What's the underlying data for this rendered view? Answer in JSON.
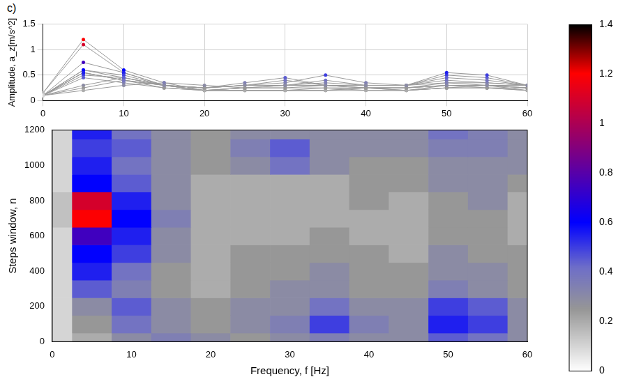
{
  "chart_data": {
    "type": "surface",
    "panel": "c)",
    "x_label": "Frequency, f [Hz]",
    "y_label": "Steps window, n",
    "z_label": "Amplitude, a_z[m/s^2]",
    "x": [
      0,
      5,
      10,
      15,
      20,
      25,
      30,
      35,
      40,
      45,
      50,
      55,
      60
    ],
    "y": [
      0,
      100,
      200,
      300,
      400,
      500,
      600,
      700,
      800,
      900,
      1000,
      1100,
      1200
    ],
    "z": [
      [
        0.1,
        0.2,
        0.3,
        0.35,
        0.3,
        0.25,
        0.3,
        0.35,
        0.3,
        0.3,
        0.45,
        0.4,
        0.3
      ],
      [
        0.1,
        0.25,
        0.4,
        0.3,
        0.25,
        0.3,
        0.35,
        0.5,
        0.35,
        0.3,
        0.55,
        0.5,
        0.3
      ],
      [
        0.1,
        0.3,
        0.45,
        0.3,
        0.25,
        0.3,
        0.3,
        0.4,
        0.3,
        0.3,
        0.5,
        0.45,
        0.3
      ],
      [
        0.1,
        0.45,
        0.35,
        0.25,
        0.2,
        0.25,
        0.3,
        0.3,
        0.25,
        0.25,
        0.35,
        0.3,
        0.25
      ],
      [
        0.1,
        0.55,
        0.4,
        0.25,
        0.2,
        0.25,
        0.25,
        0.3,
        0.25,
        0.25,
        0.3,
        0.3,
        0.25
      ],
      [
        0.1,
        0.6,
        0.5,
        0.3,
        0.2,
        0.25,
        0.25,
        0.25,
        0.25,
        0.2,
        0.3,
        0.25,
        0.25
      ],
      [
        0.1,
        0.75,
        0.55,
        0.3,
        0.2,
        0.2,
        0.2,
        0.25,
        0.2,
        0.2,
        0.25,
        0.25,
        0.2
      ],
      [
        0.15,
        1.2,
        0.6,
        0.35,
        0.2,
        0.2,
        0.2,
        0.2,
        0.2,
        0.2,
        0.25,
        0.25,
        0.2
      ],
      [
        0.15,
        1.1,
        0.55,
        0.3,
        0.2,
        0.2,
        0.2,
        0.2,
        0.25,
        0.2,
        0.25,
        0.3,
        0.2
      ],
      [
        0.1,
        0.6,
        0.45,
        0.3,
        0.2,
        0.2,
        0.2,
        0.2,
        0.25,
        0.25,
        0.3,
        0.3,
        0.25
      ],
      [
        0.1,
        0.55,
        0.4,
        0.3,
        0.25,
        0.3,
        0.4,
        0.3,
        0.25,
        0.25,
        0.3,
        0.3,
        0.3
      ],
      [
        0.1,
        0.5,
        0.45,
        0.3,
        0.25,
        0.35,
        0.45,
        0.3,
        0.3,
        0.3,
        0.35,
        0.35,
        0.3
      ],
      [
        0.1,
        0.55,
        0.4,
        0.3,
        0.25,
        0.3,
        0.3,
        0.3,
        0.3,
        0.3,
        0.4,
        0.35,
        0.3
      ]
    ],
    "xlim": [
      0,
      60
    ],
    "xticks": [
      0,
      10,
      20,
      30,
      40,
      50,
      60
    ],
    "ylim": [
      0,
      1200
    ],
    "yticks": [
      0,
      200,
      400,
      600,
      800,
      1000,
      1200
    ],
    "zlim": [
      0,
      1.5
    ],
    "zticks": [
      0,
      0.5,
      1,
      1.5
    ],
    "colorbar": {
      "range": [
        0,
        1.4
      ],
      "ticks": [
        0,
        0.2,
        0.4,
        0.6,
        0.8,
        1,
        1.2,
        1.4
      ]
    },
    "grid": true
  }
}
